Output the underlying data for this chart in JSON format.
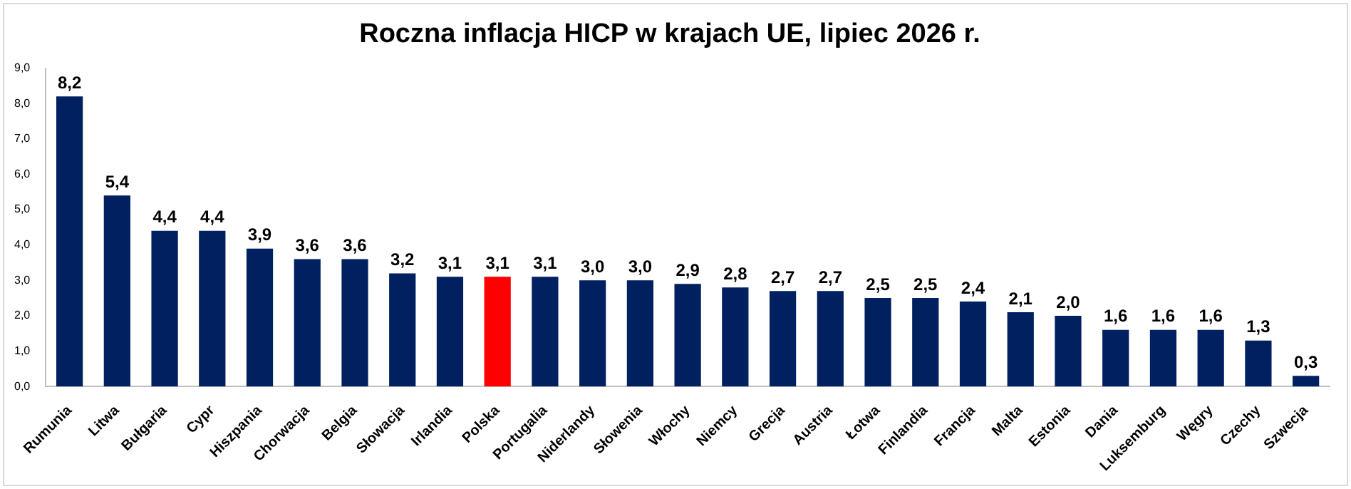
{
  "chart_data": {
    "type": "bar",
    "title": "Roczna inflacja HICP w krajach UE, lipiec 2026 r.",
    "categories": [
      "Rumunia",
      "Litwa",
      "Bułgaria",
      "Cypr",
      "Hiszpania",
      "Chorwacja",
      "Belgia",
      "Słowacja",
      "Irlandia",
      "Polska",
      "Portugalia",
      "Niderlandy",
      "Słowenia",
      "Włochy",
      "Niemcy",
      "Grecja",
      "Austria",
      "Łotwa",
      "Finlandia",
      "Francja",
      "Malta",
      "Estonia",
      "Dania",
      "Luksemburg",
      "Węgry",
      "Czechy",
      "Szwecja"
    ],
    "values": [
      8.2,
      5.4,
      4.4,
      4.4,
      3.9,
      3.6,
      3.6,
      3.2,
      3.1,
      3.1,
      3.1,
      3.0,
      3.0,
      2.9,
      2.8,
      2.7,
      2.7,
      2.5,
      2.5,
      2.4,
      2.1,
      2.0,
      1.6,
      1.6,
      1.6,
      1.3,
      0.3
    ],
    "value_labels": [
      "8,2",
      "5,4",
      "4,4",
      "4,4",
      "3,9",
      "3,6",
      "3,6",
      "3,2",
      "3,1",
      "3,1",
      "3,1",
      "3,0",
      "3,0",
      "2,9",
      "2,8",
      "2,7",
      "2,7",
      "2,5",
      "2,5",
      "2,4",
      "2,1",
      "2,0",
      "1,6",
      "1,6",
      "1,6",
      "1,3",
      "0,3"
    ],
    "colors": [
      "#002060",
      "#002060",
      "#002060",
      "#002060",
      "#002060",
      "#002060",
      "#002060",
      "#002060",
      "#002060",
      "#ff0000",
      "#002060",
      "#002060",
      "#002060",
      "#002060",
      "#002060",
      "#002060",
      "#002060",
      "#002060",
      "#002060",
      "#002060",
      "#002060",
      "#002060",
      "#002060",
      "#002060",
      "#002060",
      "#002060",
      "#002060"
    ],
    "ylim": [
      0,
      9
    ],
    "yticks": [
      {
        "value": 0,
        "label": "0,0"
      },
      {
        "value": 1,
        "label": "1,0"
      },
      {
        "value": 2,
        "label": "2,0"
      },
      {
        "value": 3,
        "label": "3,0"
      },
      {
        "value": 4,
        "label": "4,0"
      },
      {
        "value": 5,
        "label": "5,0"
      },
      {
        "value": 6,
        "label": "6,0"
      },
      {
        "value": 7,
        "label": "7,0"
      },
      {
        "value": 8,
        "label": "8,0"
      },
      {
        "value": 9,
        "label": "9,0"
      }
    ],
    "grid": false,
    "legend": false
  }
}
